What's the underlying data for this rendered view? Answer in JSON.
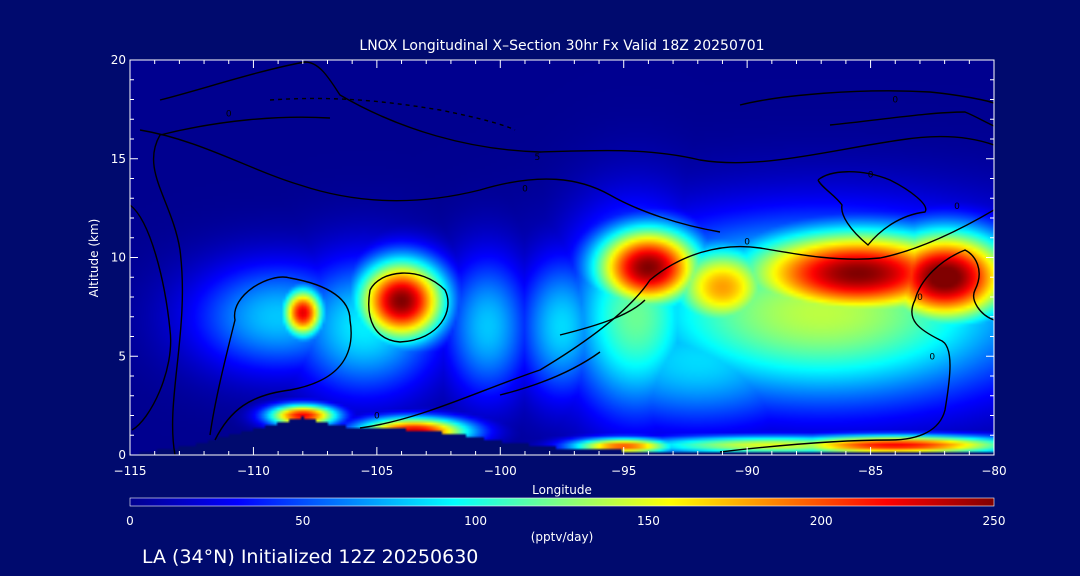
{
  "chart_data": {
    "type": "heatmap",
    "title": "LNOX Longitudinal X–Section 30hr  Fx Valid 18Z 20250701",
    "xlabel": "Longitude",
    "ylabel": "Altitude (km)",
    "xlim": [
      -115,
      -80
    ],
    "ylim": [
      0,
      20
    ],
    "x_ticks": [
      -115,
      -110,
      -105,
      -100,
      -95,
      -90,
      -85,
      -80
    ],
    "x_tick_labels": [
      "−115",
      "−110",
      "−105",
      "−100",
      "−95",
      "−90",
      "−85",
      "−80"
    ],
    "y_ticks": [
      0,
      5,
      10,
      15,
      20
    ],
    "y_tick_labels": [
      "0",
      "5",
      "10",
      "15",
      "20"
    ],
    "colorbar": {
      "label": "(pptv/day)",
      "min": 0,
      "max": 250,
      "ticks": [
        0,
        50,
        100,
        150,
        200,
        250
      ],
      "tick_labels": [
        "0",
        "50",
        "100",
        "150",
        "200",
        "250"
      ],
      "colors": [
        "#00008f",
        "#0000ff",
        "#0080ff",
        "#00ffff",
        "#80ff80",
        "#ffff00",
        "#ff8000",
        "#ff0000",
        "#800000"
      ]
    },
    "colorbar_position": "bottom",
    "terrain_km": [
      [
        -115,
        0
      ],
      [
        -112,
        0.6
      ],
      [
        -111,
        1.0
      ],
      [
        -109,
        1.6
      ],
      [
        -108,
        1.9
      ],
      [
        -107,
        1.6
      ],
      [
        -106,
        1.4
      ],
      [
        -104,
        1.3
      ],
      [
        -102,
        1.1
      ],
      [
        -100,
        0.7
      ],
      [
        -98,
        0.4
      ],
      [
        -96,
        0.25
      ],
      [
        -92,
        0.15
      ],
      [
        -88,
        0.12
      ],
      [
        -84,
        0.12
      ],
      [
        -80,
        0.1
      ]
    ],
    "field_blobs": [
      {
        "lon": -108,
        "alt": 7.2,
        "value": 225,
        "sx": 0.6,
        "sy": 0.9
      },
      {
        "lon": -109,
        "alt": 7.0,
        "value": 80,
        "sx": 2.5,
        "sy": 2.0
      },
      {
        "lon": -104,
        "alt": 7.8,
        "value": 250,
        "sx": 1.3,
        "sy": 1.5
      },
      {
        "lon": -105.5,
        "alt": 6.5,
        "value": 90,
        "sx": 2.2,
        "sy": 2.5
      },
      {
        "lon": -100.5,
        "alt": 6.5,
        "value": 80,
        "sx": 1.3,
        "sy": 2.6
      },
      {
        "lon": -97.5,
        "alt": 6.5,
        "value": 85,
        "sx": 1.3,
        "sy": 2.6
      },
      {
        "lon": -94,
        "alt": 9.5,
        "value": 250,
        "sx": 1.6,
        "sy": 1.5
      },
      {
        "lon": -94.5,
        "alt": 7.0,
        "value": 120,
        "sx": 2.0,
        "sy": 3.5
      },
      {
        "lon": -91,
        "alt": 8.5,
        "value": 180,
        "sx": 1.6,
        "sy": 1.6
      },
      {
        "lon": -85.5,
        "alt": 9.2,
        "value": 250,
        "sx": 3.5,
        "sy": 1.6
      },
      {
        "lon": -82,
        "alt": 9.0,
        "value": 260,
        "sx": 2.0,
        "sy": 1.7
      },
      {
        "lon": -87,
        "alt": 7.2,
        "value": 140,
        "sx": 6.0,
        "sy": 3.2
      },
      {
        "lon": -92,
        "alt": 4.8,
        "value": 85,
        "sx": 4.0,
        "sy": 2.5
      },
      {
        "lon": -108,
        "alt": 2.0,
        "value": 220,
        "sx": 1.0,
        "sy": 0.4
      },
      {
        "lon": -103.5,
        "alt": 1.2,
        "value": 230,
        "sx": 1.6,
        "sy": 0.5
      },
      {
        "lon": -95,
        "alt": 0.45,
        "value": 200,
        "sx": 1.5,
        "sy": 0.3
      },
      {
        "lon": -84,
        "alt": 0.5,
        "value": 220,
        "sx": 3.5,
        "sy": 0.35
      },
      {
        "lon": -89,
        "alt": 0.5,
        "value": 150,
        "sx": 4.0,
        "sy": 0.35
      }
    ],
    "contour_labels": [
      {
        "lon": -111,
        "alt": 17.3,
        "text": "0"
      },
      {
        "lon": -98.5,
        "alt": 15.1,
        "text": "5"
      },
      {
        "lon": -99,
        "alt": 13.5,
        "text": "0"
      },
      {
        "lon": -84,
        "alt": 18.0,
        "text": "0"
      },
      {
        "lon": -85,
        "alt": 14.2,
        "text": "0"
      },
      {
        "lon": -81.5,
        "alt": 12.6,
        "text": "0"
      },
      {
        "lon": -90,
        "alt": 10.8,
        "text": "0"
      },
      {
        "lon": -83,
        "alt": 8.0,
        "text": "0"
      },
      {
        "lon": -82.5,
        "alt": 5.0,
        "text": "0"
      },
      {
        "lon": -105,
        "alt": 2.0,
        "text": "0"
      }
    ]
  },
  "footer": {
    "caption": "LA (34°N) Initialized 12Z 20250630"
  }
}
